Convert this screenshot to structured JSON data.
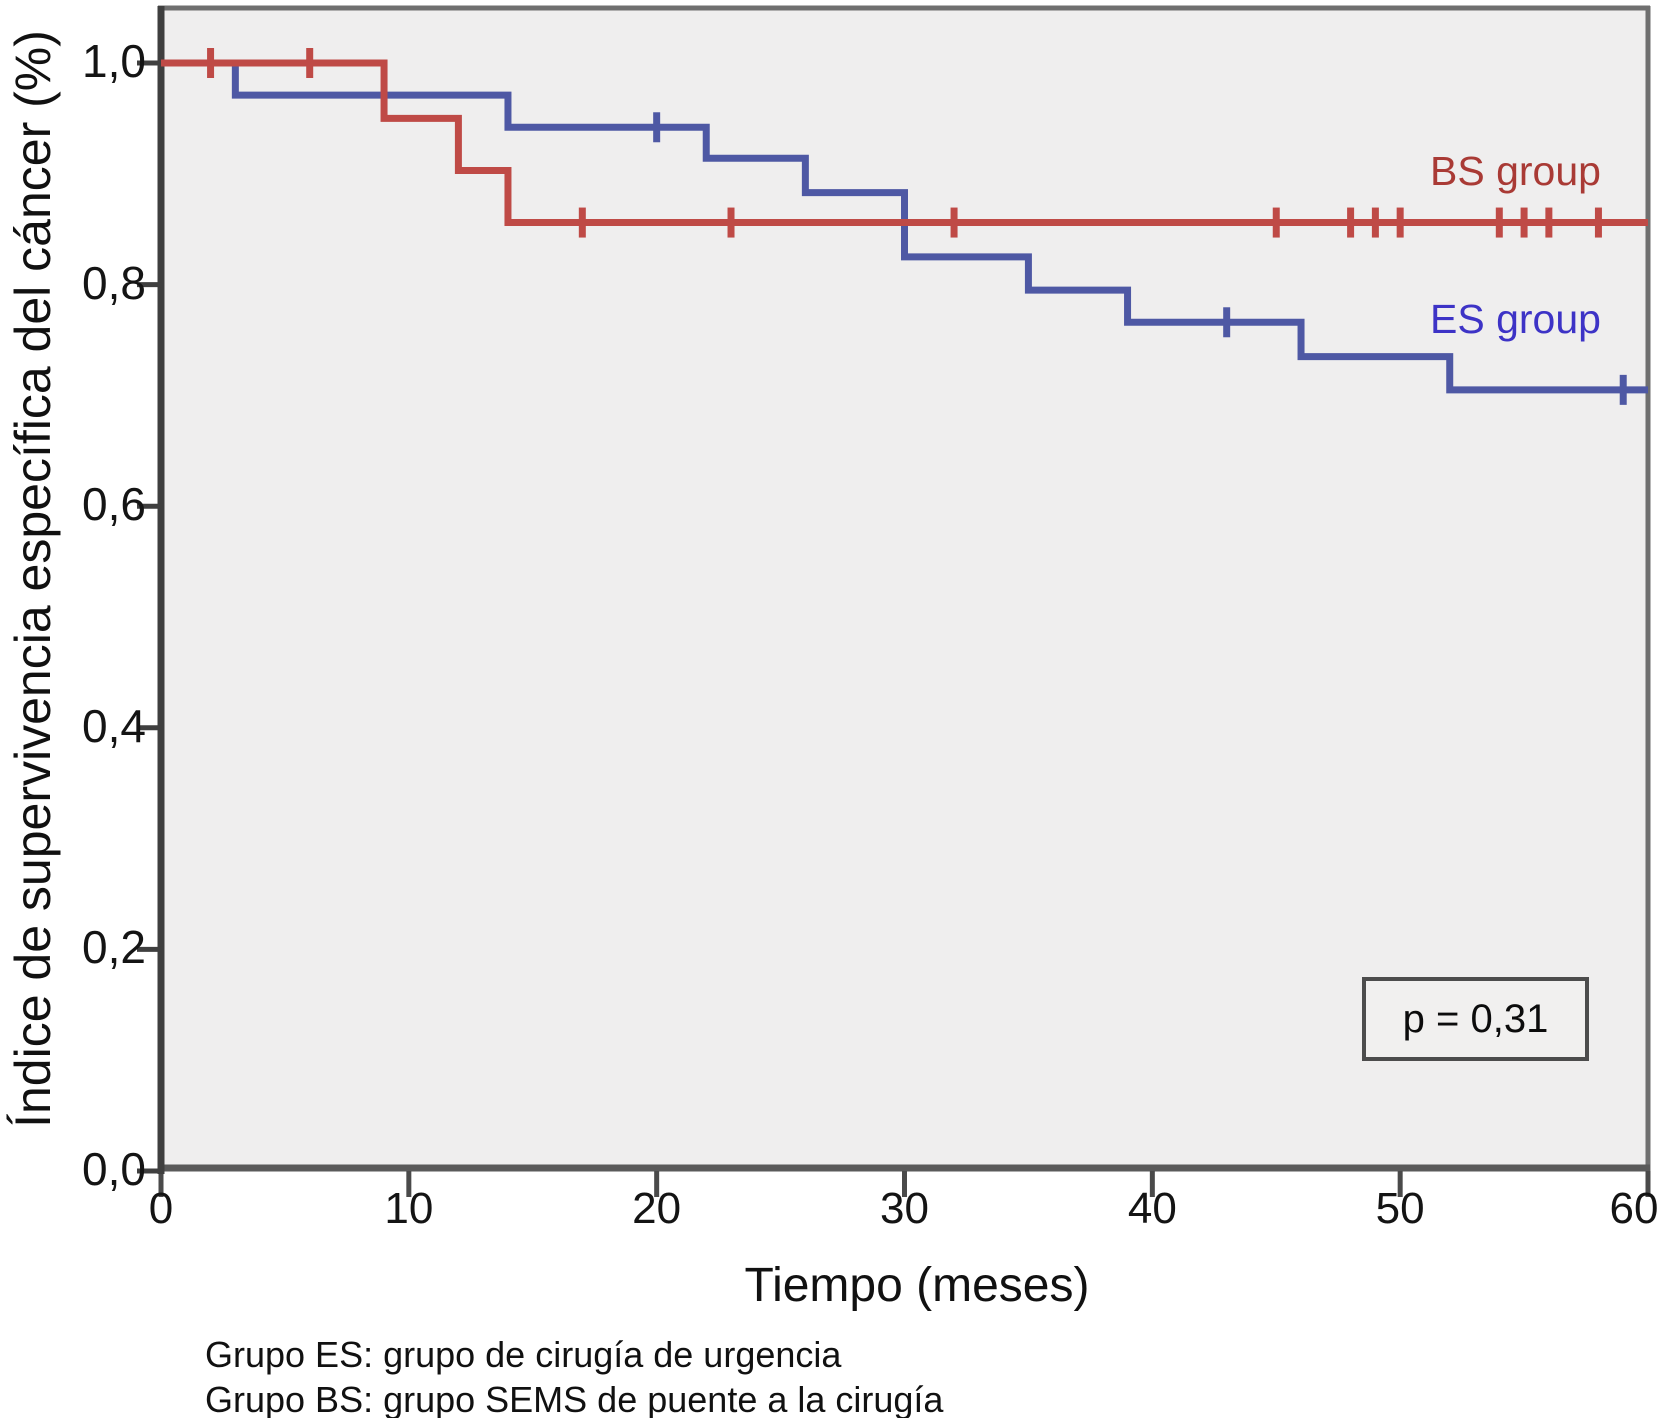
{
  "figure": {
    "background": "#ffffff",
    "plot_background": "#efeeee",
    "frame_color": "#6f6f6f",
    "axis_color": "#3f3f3f",
    "tick_color": "#4a4a4a",
    "text_color": "#141414"
  },
  "chart_data": {
    "type": "line",
    "subtype": "kaplan_meier_step",
    "title": "",
    "xlabel": "Tiempo (meses)",
    "ylabel": "Índice de supervivencia específica del cáncer (%)",
    "xlim": [
      0,
      60
    ],
    "ylim": [
      0.0,
      1.0
    ],
    "grid": false,
    "legend_position": "inline-right",
    "x_ticks": [
      {
        "v": 0,
        "label": "0"
      },
      {
        "v": 10,
        "label": "10"
      },
      {
        "v": 20,
        "label": "20"
      },
      {
        "v": 30,
        "label": "30"
      },
      {
        "v": 40,
        "label": "40"
      },
      {
        "v": 50,
        "label": "50"
      },
      {
        "v": 60,
        "label": "60"
      }
    ],
    "y_ticks": [
      {
        "v": 0.0,
        "label": "0,0"
      },
      {
        "v": 0.2,
        "label": "0,2"
      },
      {
        "v": 0.4,
        "label": "0,4"
      },
      {
        "v": 0.6,
        "label": "0,6"
      },
      {
        "v": 0.8,
        "label": "0,8"
      },
      {
        "v": 1.0,
        "label": "1,0"
      }
    ],
    "series": [
      {
        "name": "BS group",
        "color": "#bf4a46",
        "label_color": "#a93a35",
        "steps": [
          [
            0,
            1.0
          ],
          [
            9,
            0.95
          ],
          [
            12,
            0.903
          ],
          [
            14,
            0.856
          ],
          [
            60,
            0.856
          ]
        ],
        "censors": [
          [
            2,
            1.0
          ],
          [
            6,
            1.0
          ],
          [
            17,
            0.856
          ],
          [
            23,
            0.856
          ],
          [
            32,
            0.856
          ],
          [
            45,
            0.856
          ],
          [
            48,
            0.856
          ],
          [
            49,
            0.856
          ],
          [
            50,
            0.856
          ],
          [
            54,
            0.856
          ],
          [
            55,
            0.856
          ],
          [
            56,
            0.856
          ],
          [
            58,
            0.856
          ]
        ]
      },
      {
        "name": "ES group",
        "color": "#4e58a4",
        "label_color": "#3d33c6",
        "steps": [
          [
            0,
            1.0
          ],
          [
            3,
            0.971
          ],
          [
            14,
            0.942
          ],
          [
            22,
            0.914
          ],
          [
            26,
            0.883
          ],
          [
            30,
            0.825
          ],
          [
            35,
            0.795
          ],
          [
            39,
            0.766
          ],
          [
            46,
            0.735
          ],
          [
            52,
            0.705
          ],
          [
            60,
            0.705
          ]
        ],
        "censors": [
          [
            20,
            0.942
          ],
          [
            43,
            0.766
          ],
          [
            59,
            0.705
          ]
        ]
      }
    ],
    "annotation": {
      "p_label": "p = 0,31"
    }
  },
  "footnotes": {
    "line1": "Grupo ES: grupo de cirugía de urgencia",
    "line2": "Grupo BS: grupo SEMS de puente a la cirugía"
  }
}
